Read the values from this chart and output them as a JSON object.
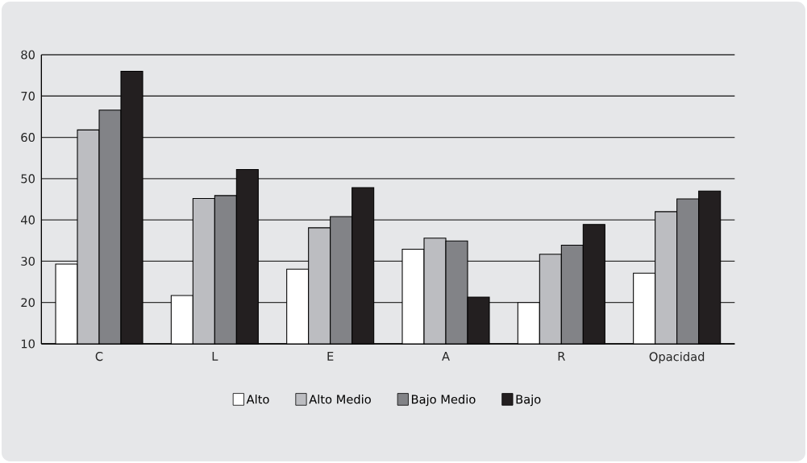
{
  "chart_data": {
    "type": "bar",
    "categories": [
      "C",
      "L",
      "E",
      "A",
      "R",
      "Opacidad"
    ],
    "series": [
      {
        "name": "Alto",
        "color": "#ffffff",
        "values": [
          29.3,
          21.7,
          28.1,
          32.9,
          20.0,
          27.1
        ]
      },
      {
        "name": "Alto Medio",
        "color": "#bcbdc1",
        "values": [
          61.8,
          45.2,
          38.1,
          35.6,
          31.7,
          42.0
        ]
      },
      {
        "name": "Bajo Medio",
        "color": "#828387",
        "values": [
          66.6,
          45.9,
          40.8,
          34.9,
          33.9,
          45.1
        ]
      },
      {
        "name": "Bajo",
        "color": "#231f20",
        "values": [
          76.0,
          52.2,
          47.8,
          21.3,
          38.9,
          47.0
        ]
      }
    ],
    "ylim": [
      10,
      80
    ],
    "yticks": [
      10,
      20,
      30,
      40,
      50,
      60,
      70,
      80
    ],
    "grid": "y",
    "legend": "bottom"
  }
}
